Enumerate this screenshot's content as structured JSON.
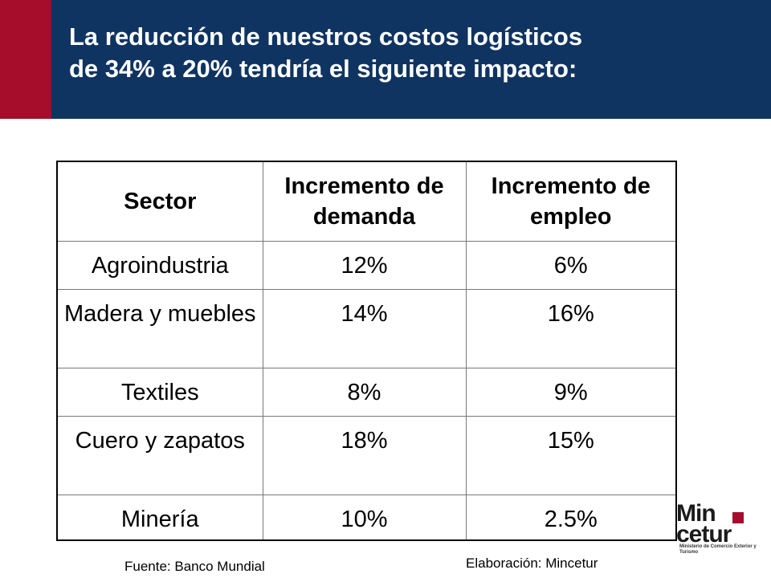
{
  "header": {
    "title_line1": "La reducción de nuestros costos logísticos",
    "title_line2": "de 34% a 20% tendría el siguiente impacto:",
    "accent_color": "#a60d2b",
    "background_color": "#0f3461"
  },
  "table": {
    "headers": [
      "Sector",
      "Incremento de demanda",
      "Incremento de empleo"
    ],
    "rows": [
      [
        "Agroindustria",
        "12%",
        "6%"
      ],
      [
        "Madera y muebles",
        "14%",
        "16%"
      ],
      [
        "Textiles",
        "8%",
        "9%"
      ],
      [
        "Cuero y zapatos",
        "18%",
        "15%"
      ],
      [
        "Minería",
        "10%",
        "2.5%"
      ]
    ]
  },
  "footer": {
    "source": "Fuente: Banco Mundial",
    "credit": "Elaboración: Mincetur"
  },
  "logo": {
    "line1": "Min",
    "line2": "cetur",
    "subtitle": "Ministerio de Comercio Exterior y Turismo"
  }
}
